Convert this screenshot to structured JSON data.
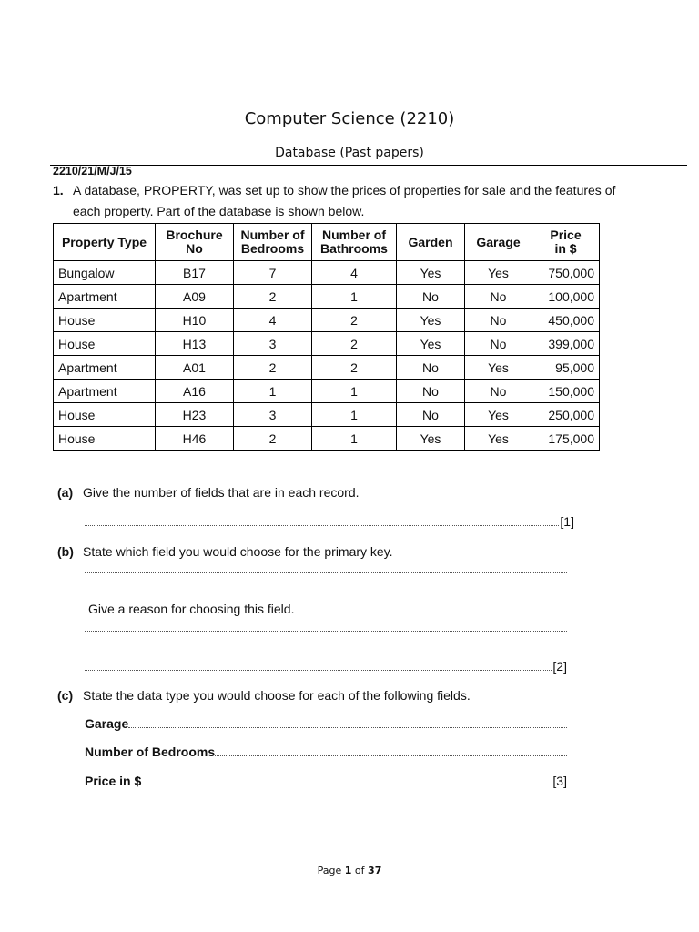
{
  "header": {
    "title": "Computer Science (2210)",
    "subtitle": "Database (Past papers)",
    "paper_code": "2210/21/M/J/15"
  },
  "question": {
    "number": "1.",
    "text_line1": "A database, PROPERTY, was set up to show the prices of properties for sale and the features of",
    "text_line2": "each property. Part of the database is shown below."
  },
  "table": {
    "headers": [
      [
        "Property Type",
        ""
      ],
      [
        "Brochure",
        "No"
      ],
      [
        "Number of",
        "Bedrooms"
      ],
      [
        "Number of",
        "Bathrooms"
      ],
      [
        "Garden",
        ""
      ],
      [
        "Garage",
        ""
      ],
      [
        "Price",
        "in $"
      ]
    ],
    "rows": [
      [
        "Bungalow",
        "B17",
        "7",
        "4",
        "Yes",
        "Yes",
        "750,000"
      ],
      [
        "Apartment",
        "A09",
        "2",
        "1",
        "No",
        "No",
        "100,000"
      ],
      [
        "House",
        "H10",
        "4",
        "2",
        "Yes",
        "No",
        "450,000"
      ],
      [
        "House",
        "H13",
        "3",
        "2",
        "Yes",
        "No",
        "399,000"
      ],
      [
        "Apartment",
        "A01",
        "2",
        "2",
        "No",
        "Yes",
        "95,000"
      ],
      [
        "Apartment",
        "A16",
        "1",
        "1",
        "No",
        "No",
        "150,000"
      ],
      [
        "House",
        "H23",
        "3",
        "1",
        "No",
        "Yes",
        "250,000"
      ],
      [
        "House",
        "H46",
        "2",
        "1",
        "Yes",
        "Yes",
        "175,000"
      ]
    ]
  },
  "parts": {
    "a": {
      "label": "(a)",
      "text": "Give the number of fields that are in each record.",
      "mark": "[1]"
    },
    "b": {
      "label": "(b)",
      "text": "State which field you would choose for the primary key.",
      "reason": "Give a reason for choosing this field.",
      "mark": "[2]"
    },
    "c": {
      "label": "(c)",
      "text": "State the data type you would choose for each of the following fields.",
      "fields": [
        "Garage",
        "Number of Bedrooms",
        "Price in $"
      ],
      "mark": "[3]"
    }
  },
  "footer": {
    "prefix": "Page ",
    "current": "1",
    "mid": " of ",
    "total": "37"
  }
}
